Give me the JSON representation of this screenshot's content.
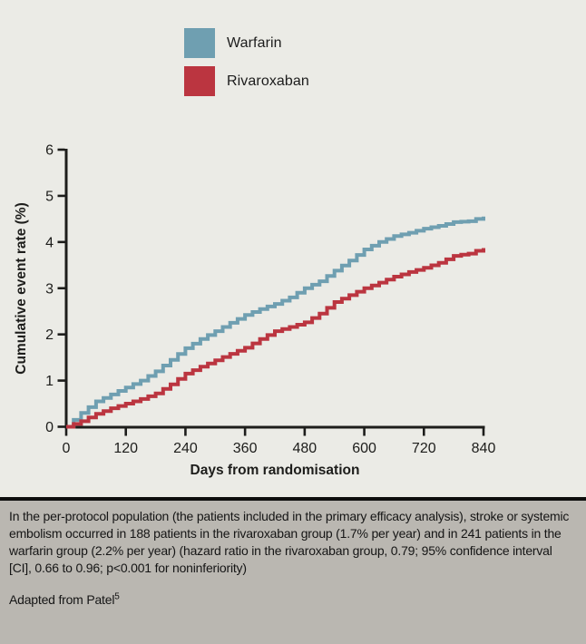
{
  "legend": {
    "items": [
      {
        "label": "Warfarin",
        "color": "#6f9fb1"
      },
      {
        "label": "Rivaroxaban",
        "color": "#bb3540"
      }
    ]
  },
  "chart_data": {
    "type": "line",
    "step": true,
    "title": "",
    "xlabel": "Days from randomisation",
    "ylabel": "Cumulative event rate (%)",
    "xlim": [
      0,
      840
    ],
    "ylim": [
      0,
      6
    ],
    "x_ticks": [
      0,
      120,
      240,
      360,
      480,
      600,
      720,
      840
    ],
    "y_ticks": [
      0,
      1,
      2,
      3,
      4,
      5,
      6
    ],
    "grid": false,
    "legend_position": "top-left-outside",
    "x": [
      0,
      30,
      60,
      90,
      120,
      150,
      180,
      210,
      240,
      270,
      300,
      330,
      360,
      390,
      420,
      450,
      480,
      510,
      540,
      570,
      600,
      630,
      660,
      690,
      720,
      750,
      780,
      810,
      840
    ],
    "series": [
      {
        "name": "Warfarin",
        "color": "#6f9fb1",
        "values": [
          0,
          0.3,
          0.55,
          0.7,
          0.85,
          1.0,
          1.2,
          1.45,
          1.7,
          1.9,
          2.07,
          2.25,
          2.42,
          2.55,
          2.66,
          2.8,
          3.0,
          3.15,
          3.38,
          3.6,
          3.84,
          4.0,
          4.13,
          4.2,
          4.29,
          4.35,
          4.43,
          4.45,
          4.55
        ]
      },
      {
        "name": "Rivaroxaban",
        "color": "#bb3540",
        "values": [
          0,
          0.12,
          0.28,
          0.4,
          0.5,
          0.6,
          0.72,
          0.92,
          1.15,
          1.3,
          1.44,
          1.58,
          1.71,
          1.9,
          2.07,
          2.16,
          2.26,
          2.45,
          2.7,
          2.85,
          3.0,
          3.12,
          3.25,
          3.35,
          3.44,
          3.55,
          3.7,
          3.75,
          3.87
        ]
      }
    ]
  },
  "caption": {
    "body": "In the per-protocol population (the patients included in the primary efficacy analysis), stroke or systemic embolism occurred in 188 patients in the rivaroxaban group (1.7% per year) and in 241 patients in the warfarin group (2.2% per year) (hazard ratio in the rivaroxaban group, 0.79; 95% confidence interval [CI], 0.66 to 0.96; p<0.001 for noninferiority)",
    "source_prefix": "Adapted from Patel",
    "source_ref": "5"
  },
  "colors": {
    "background": "#ebebe6",
    "axis": "#1d1d1b",
    "tick_text": "#1d1d1b",
    "caption_background": "#bab7b1",
    "caption_border": "#0e0e0e"
  }
}
